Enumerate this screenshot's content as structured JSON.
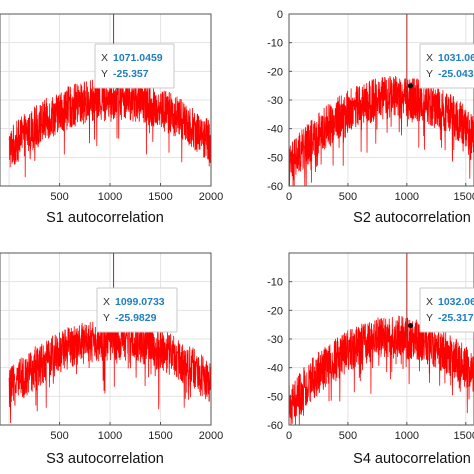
{
  "chart_data": [
    {
      "type": "line",
      "xlabel": "S1 autocorrelation",
      "xticks": [
        500,
        1000,
        1500,
        2000
      ],
      "yticks": [],
      "xlim": [
        -90,
        2000
      ],
      "ylim": [
        -60,
        0
      ],
      "grid": true,
      "line_color": "#ff0000",
      "series": [
        {
          "peak": {
            "x": 1071.0459,
            "y": -25.357
          },
          "spike": {
            "x": 1035,
            "y": 0
          }
        }
      ],
      "datatip": {
        "x_label": "X",
        "x_value": "1071.0459",
        "y_label": "Y",
        "y_value": "-25.357"
      }
    },
    {
      "type": "line",
      "xlabel": "S2 autocorrelation",
      "xticks": [
        0,
        500,
        1000,
        1500
      ],
      "yticks": [
        0,
        -10,
        -20,
        -30,
        -40,
        -50,
        -60
      ],
      "xlim": [
        0,
        1570
      ],
      "ylim": [
        -60,
        0
      ],
      "grid": true,
      "line_color": "#ff0000",
      "series": [
        {
          "peak": {
            "x": 1031.06,
            "y": -25.043
          },
          "spike": {
            "x": 1000,
            "y": 0
          }
        }
      ],
      "datatip": {
        "x_label": "X",
        "x_value": "1031.06",
        "y_label": "Y",
        "y_value": "-25.043"
      }
    },
    {
      "type": "line",
      "xlabel": "S3 autocorrelation",
      "xticks": [
        500,
        1000,
        1500,
        2000
      ],
      "yticks": [],
      "xlim": [
        -90,
        2000
      ],
      "ylim": [
        -60,
        0
      ],
      "grid": true,
      "line_color": "#ff0000",
      "series": [
        {
          "peak": {
            "x": 1099.0733,
            "y": -25.9829
          },
          "spike": {
            "x": 1035,
            "y": 0
          }
        }
      ],
      "datatip": {
        "x_label": "X",
        "x_value": "1099.0733",
        "y_label": "Y",
        "y_value": "-25.9829"
      }
    },
    {
      "type": "line",
      "xlabel": "S4 autocorrelation",
      "xticks": [
        0,
        500,
        1000,
        1500
      ],
      "yticks": [
        -10,
        -20,
        -30,
        -40,
        -50,
        -60
      ],
      "xlim": [
        0,
        1570
      ],
      "ylim": [
        -60,
        0
      ],
      "grid": true,
      "line_color": "#ff0000",
      "series": [
        {
          "peak": {
            "x": 1032.06,
            "y": -25.317
          },
          "spike": {
            "x": 1000,
            "y": 0
          }
        }
      ],
      "datatip": {
        "x_label": "X",
        "x_value": "1032.06",
        "y_label": "Y",
        "y_value": "-25.317"
      }
    }
  ]
}
